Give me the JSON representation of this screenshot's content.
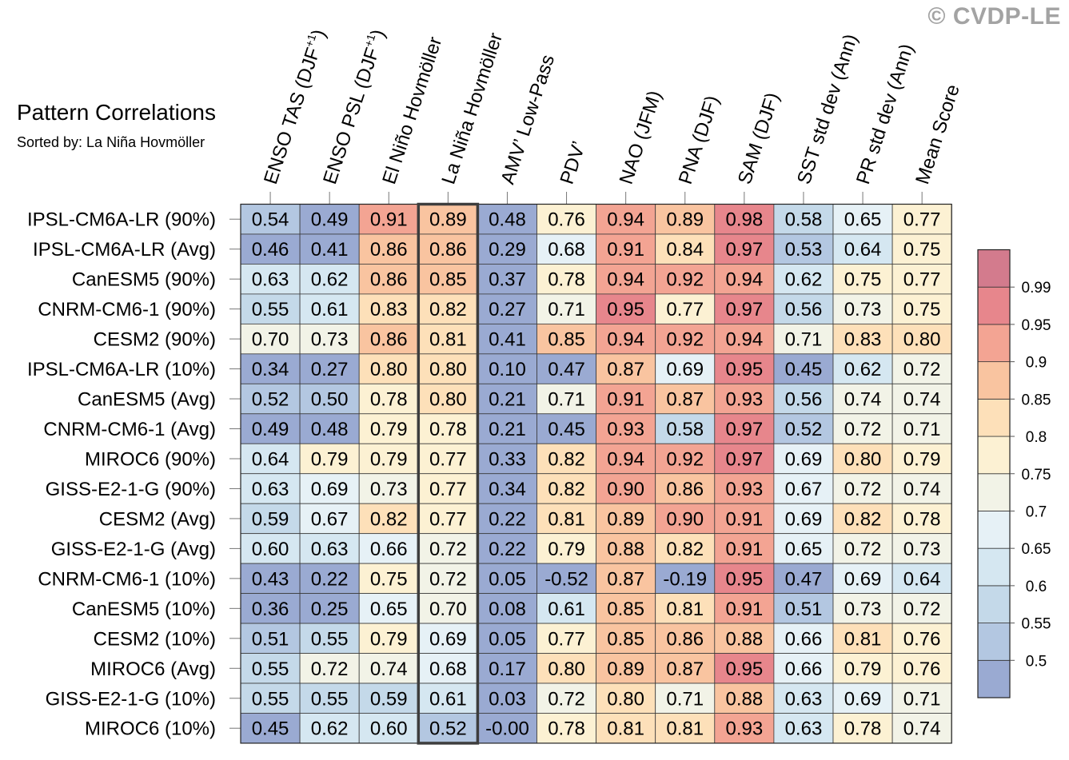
{
  "title": "Pattern Correlations",
  "subtitle": "Sorted by: La Niña Hovmöller",
  "watermark": "© CVDP-LE",
  "chart_data": {
    "type": "heatmap",
    "title": "Pattern Correlations",
    "sorted_by": "La Niña Hovmöller",
    "highlighted_column": "La Niña Hovmöller",
    "columns": [
      "ENSO TAS (DJF+1)",
      "ENSO PSL (DJF+1)",
      "El Niño Hovmöller",
      "La Niña Hovmöller",
      "AMV’ Low-Pass",
      "PDV’",
      "NAO (JFM)",
      "PNA (DJF)",
      "SAM (DJF)",
      "SST std dev (Ann)",
      "PR std dev (Ann)",
      "Mean Score"
    ],
    "rows": [
      "IPSL-CM6A-LR (90%)",
      "IPSL-CM6A-LR (Avg)",
      "CanESM5 (90%)",
      "CNRM-CM6-1 (90%)",
      "CESM2 (90%)",
      "IPSL-CM6A-LR (10%)",
      "CanESM5 (Avg)",
      "CNRM-CM6-1 (Avg)",
      "MIROC6 (90%)",
      "GISS-E2-1-G (90%)",
      "CESM2 (Avg)",
      "GISS-E2-1-G (Avg)",
      "CNRM-CM6-1 (10%)",
      "CanESM5 (10%)",
      "CESM2 (10%)",
      "MIROC6 (Avg)",
      "GISS-E2-1-G (10%)",
      "MIROC6 (10%)"
    ],
    "values": [
      [
        "0.54",
        "0.49",
        "0.91",
        "0.89",
        "0.48",
        "0.76",
        "0.94",
        "0.89",
        "0.98",
        "0.58",
        "0.65",
        "0.77"
      ],
      [
        "0.46",
        "0.41",
        "0.86",
        "0.86",
        "0.29",
        "0.68",
        "0.91",
        "0.84",
        "0.97",
        "0.53",
        "0.64",
        "0.75"
      ],
      [
        "0.63",
        "0.62",
        "0.86",
        "0.85",
        "0.37",
        "0.78",
        "0.94",
        "0.92",
        "0.94",
        "0.62",
        "0.75",
        "0.77"
      ],
      [
        "0.55",
        "0.61",
        "0.83",
        "0.82",
        "0.27",
        "0.71",
        "0.95",
        "0.77",
        "0.97",
        "0.56",
        "0.73",
        "0.75"
      ],
      [
        "0.70",
        "0.73",
        "0.86",
        "0.81",
        "0.41",
        "0.85",
        "0.94",
        "0.92",
        "0.94",
        "0.71",
        "0.83",
        "0.80"
      ],
      [
        "0.34",
        "0.27",
        "0.80",
        "0.80",
        "0.10",
        "0.47",
        "0.87",
        "0.69",
        "0.95",
        "0.45",
        "0.62",
        "0.72"
      ],
      [
        "0.52",
        "0.50",
        "0.78",
        "0.80",
        "0.21",
        "0.71",
        "0.91",
        "0.87",
        "0.93",
        "0.56",
        "0.74",
        "0.74"
      ],
      [
        "0.49",
        "0.48",
        "0.79",
        "0.78",
        "0.21",
        "0.45",
        "0.93",
        "0.58",
        "0.97",
        "0.52",
        "0.72",
        "0.71"
      ],
      [
        "0.64",
        "0.79",
        "0.79",
        "0.77",
        "0.33",
        "0.82",
        "0.94",
        "0.92",
        "0.97",
        "0.69",
        "0.80",
        "0.79"
      ],
      [
        "0.63",
        "0.69",
        "0.73",
        "0.77",
        "0.34",
        "0.82",
        "0.90",
        "0.86",
        "0.93",
        "0.67",
        "0.72",
        "0.74"
      ],
      [
        "0.59",
        "0.67",
        "0.82",
        "0.77",
        "0.22",
        "0.81",
        "0.89",
        "0.90",
        "0.91",
        "0.69",
        "0.82",
        "0.78"
      ],
      [
        "0.60",
        "0.63",
        "0.66",
        "0.72",
        "0.22",
        "0.79",
        "0.88",
        "0.82",
        "0.91",
        "0.65",
        "0.72",
        "0.73"
      ],
      [
        "0.43",
        "0.22",
        "0.75",
        "0.72",
        "0.05",
        "-0.52",
        "0.87",
        "-0.19",
        "0.95",
        "0.47",
        "0.69",
        "0.64"
      ],
      [
        "0.36",
        "0.25",
        "0.65",
        "0.70",
        "0.08",
        "0.61",
        "0.85",
        "0.81",
        "0.91",
        "0.51",
        "0.73",
        "0.72"
      ],
      [
        "0.51",
        "0.55",
        "0.79",
        "0.69",
        "0.05",
        "0.77",
        "0.85",
        "0.86",
        "0.88",
        "0.66",
        "0.81",
        "0.76"
      ],
      [
        "0.55",
        "0.72",
        "0.74",
        "0.68",
        "0.17",
        "0.80",
        "0.89",
        "0.87",
        "0.95",
        "0.66",
        "0.79",
        "0.76"
      ],
      [
        "0.55",
        "0.55",
        "0.59",
        "0.61",
        "0.03",
        "0.72",
        "0.80",
        "0.71",
        "0.88",
        "0.63",
        "0.69",
        "0.71"
      ],
      [
        "0.45",
        "0.62",
        "0.60",
        "0.52",
        "-0.00",
        "0.78",
        "0.81",
        "0.81",
        "0.93",
        "0.63",
        "0.78",
        "0.74"
      ]
    ],
    "colorbar": {
      "boundaries": [
        0.5,
        0.55,
        0.6,
        0.65,
        0.7,
        0.75,
        0.8,
        0.85,
        0.9,
        0.95,
        0.99
      ],
      "labels": [
        "0.5",
        "0.55",
        "0.6",
        "0.65",
        "0.7",
        "0.75",
        "0.8",
        "0.85",
        "0.9",
        "0.95",
        "0.99"
      ],
      "colors": [
        "#9aaad2",
        "#b3c7e1",
        "#c4d9e9",
        "#d5e7f1",
        "#e6f1f6",
        "#f2f3e7",
        "#fcf1d3",
        "#fde0b9",
        "#f9c4a0",
        "#f3a493",
        "#e7868c",
        "#d37b8d"
      ]
    }
  }
}
